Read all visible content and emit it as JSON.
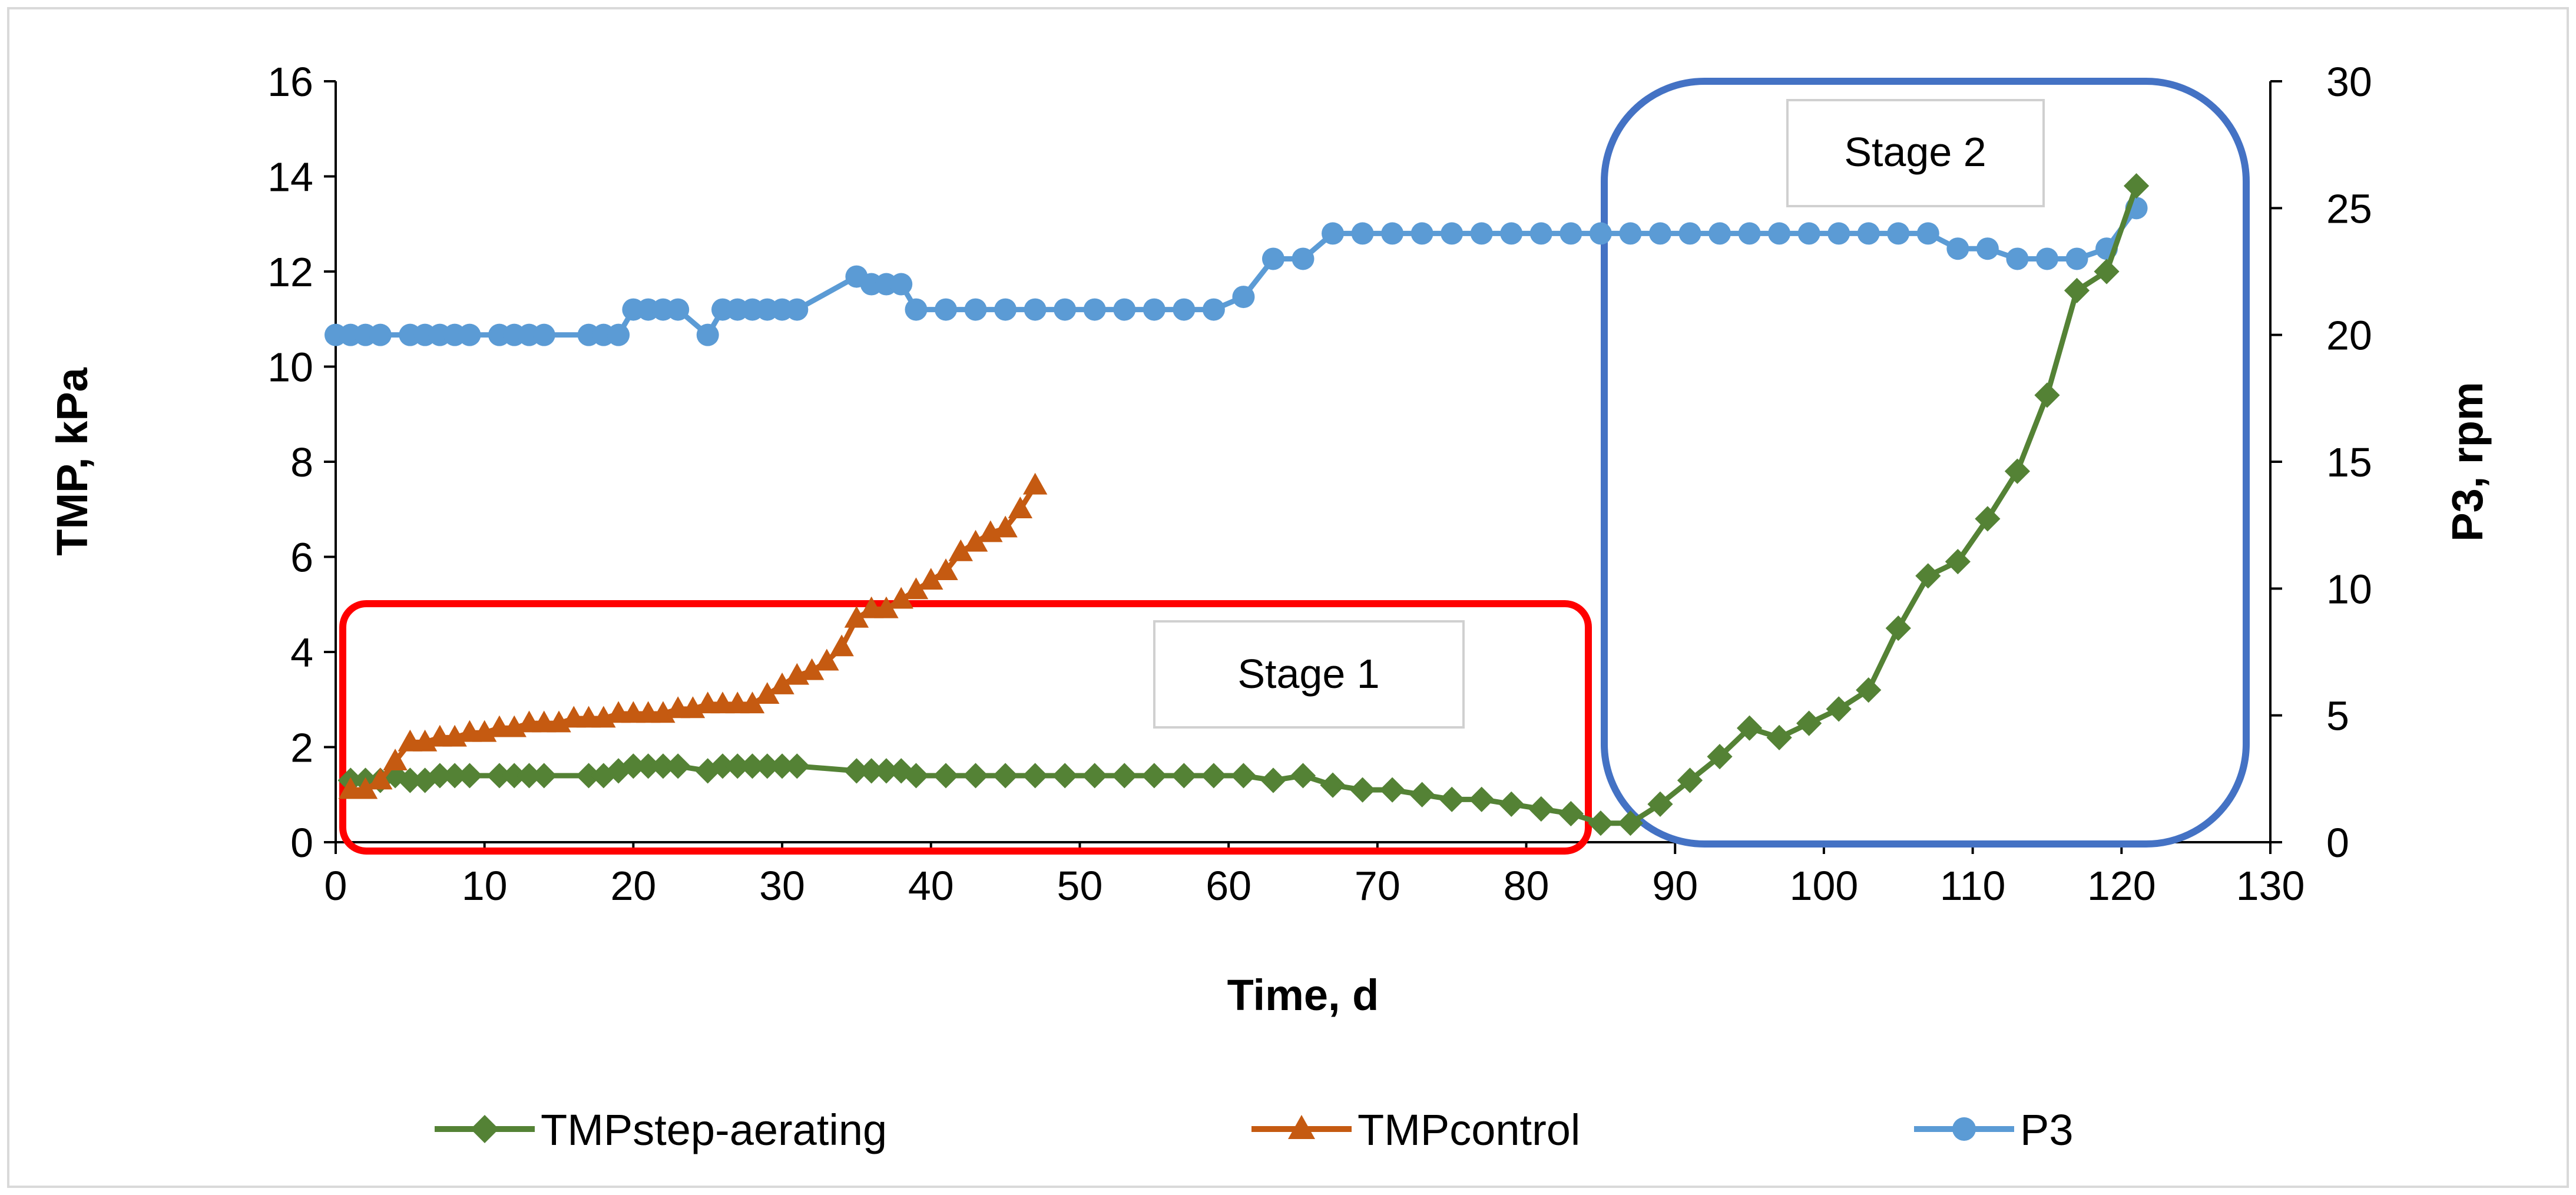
{
  "chart_data": {
    "type": "line",
    "title": "",
    "xlabel": "Time, d",
    "ylabel": "TMP, kPa",
    "y2label": "P3, rpm",
    "xlim": [
      0,
      130
    ],
    "ylim": [
      0,
      16
    ],
    "y2lim": [
      0,
      30
    ],
    "xticks": [
      0,
      10,
      20,
      30,
      40,
      50,
      60,
      70,
      80,
      90,
      100,
      110,
      120,
      130
    ],
    "yticks": [
      0,
      2,
      4,
      6,
      8,
      10,
      12,
      14,
      16
    ],
    "y2ticks": [
      0,
      5,
      10,
      15,
      20,
      25,
      30
    ],
    "legend_position": "bottom",
    "series": [
      {
        "name": "TMPstep-aerating",
        "axis": "left",
        "marker": "diamond",
        "color": "#548235",
        "x": [
          1,
          2,
          3,
          4,
          5,
          6,
          7,
          8,
          9,
          11,
          12,
          13,
          14,
          17,
          18,
          19,
          20,
          21,
          22,
          23,
          25,
          26,
          27,
          28,
          29,
          30,
          31,
          35,
          36,
          37,
          38,
          39,
          41,
          43,
          45,
          47,
          49,
          51,
          53,
          55,
          57,
          59,
          61,
          63,
          65,
          67,
          69,
          71,
          73,
          75,
          77,
          79,
          81,
          83,
          85,
          87,
          89,
          91,
          93,
          95,
          97,
          99,
          101,
          103,
          105,
          107,
          109,
          111,
          113,
          115,
          117,
          119,
          121
        ],
        "values": [
          1.3,
          1.3,
          1.3,
          1.4,
          1.3,
          1.3,
          1.4,
          1.4,
          1.4,
          1.4,
          1.4,
          1.4,
          1.4,
          1.4,
          1.4,
          1.5,
          1.6,
          1.6,
          1.6,
          1.6,
          1.5,
          1.6,
          1.6,
          1.6,
          1.6,
          1.6,
          1.6,
          1.5,
          1.5,
          1.5,
          1.5,
          1.4,
          1.4,
          1.4,
          1.4,
          1.4,
          1.4,
          1.4,
          1.4,
          1.4,
          1.4,
          1.4,
          1.4,
          1.3,
          1.4,
          1.2,
          1.1,
          1.1,
          1.0,
          0.9,
          0.9,
          0.8,
          0.7,
          0.6,
          0.4,
          0.4,
          0.8,
          1.3,
          1.8,
          2.4,
          2.2,
          2.5,
          2.8,
          3.2,
          4.5,
          5.6,
          5.9,
          6.8,
          7.8,
          9.4,
          11.6,
          12.0,
          13.8
        ]
      },
      {
        "name": "TMPcontrol",
        "axis": "left",
        "marker": "triangle",
        "color": "#C55A11",
        "x": [
          1,
          2,
          3,
          4,
          5,
          6,
          7,
          8,
          9,
          10,
          11,
          12,
          13,
          14,
          15,
          16,
          17,
          18,
          19,
          20,
          21,
          22,
          23,
          24,
          25,
          26,
          27,
          28,
          29,
          30,
          31,
          32,
          33,
          34,
          35,
          36,
          37,
          38,
          39,
          40,
          41,
          42,
          43,
          44,
          45,
          46,
          47
        ],
        "values": [
          1.1,
          1.1,
          1.3,
          1.7,
          2.1,
          2.1,
          2.2,
          2.2,
          2.3,
          2.3,
          2.4,
          2.4,
          2.5,
          2.5,
          2.5,
          2.6,
          2.6,
          2.6,
          2.7,
          2.7,
          2.7,
          2.7,
          2.8,
          2.8,
          2.9,
          2.9,
          2.9,
          2.9,
          3.1,
          3.3,
          3.5,
          3.6,
          3.8,
          4.1,
          4.7,
          4.9,
          4.9,
          5.1,
          5.3,
          5.5,
          5.7,
          6.1,
          6.3,
          6.5,
          6.6,
          7.0,
          7.5
        ]
      },
      {
        "name": "P3",
        "axis": "right",
        "marker": "circle",
        "color": "#5B9BD5",
        "x": [
          0,
          1,
          2,
          3,
          5,
          6,
          7,
          8,
          9,
          11,
          12,
          13,
          14,
          17,
          18,
          19,
          20,
          21,
          22,
          23,
          25,
          26,
          27,
          28,
          29,
          30,
          31,
          35,
          36,
          37,
          38,
          39,
          41,
          43,
          45,
          47,
          49,
          51,
          53,
          55,
          57,
          59,
          61,
          63,
          65,
          67,
          69,
          71,
          73,
          75,
          77,
          79,
          81,
          83,
          85,
          87,
          89,
          91,
          93,
          95,
          97,
          99,
          101,
          103,
          105,
          107,
          109,
          111,
          113,
          115,
          117,
          119,
          121
        ],
        "values": [
          20,
          20,
          20,
          20,
          20,
          20,
          20,
          20,
          20,
          20,
          20,
          20,
          20,
          20,
          20,
          20,
          21,
          21,
          21,
          21,
          20,
          21,
          21,
          21,
          21,
          21,
          21,
          22.3,
          22,
          22,
          22,
          21,
          21,
          21,
          21,
          21,
          21,
          21,
          21,
          21,
          21,
          21,
          21.5,
          23,
          23,
          24,
          24,
          24,
          24,
          24,
          24,
          24,
          24,
          24,
          24,
          24,
          24,
          24,
          24,
          24,
          24,
          24,
          24,
          24,
          24,
          24,
          23.4,
          23.4,
          23,
          23,
          23,
          23.4,
          25
        ]
      }
    ],
    "annotations": [
      {
        "label": "Stage 1",
        "color": "#FF0000",
        "x_range": [
          1,
          85
        ],
        "y_range": [
          0,
          5
        ]
      },
      {
        "label": "Stage 2",
        "color": "#4472C4",
        "x_range": [
          86,
          129
        ],
        "y_range": [
          0,
          16
        ]
      }
    ]
  }
}
